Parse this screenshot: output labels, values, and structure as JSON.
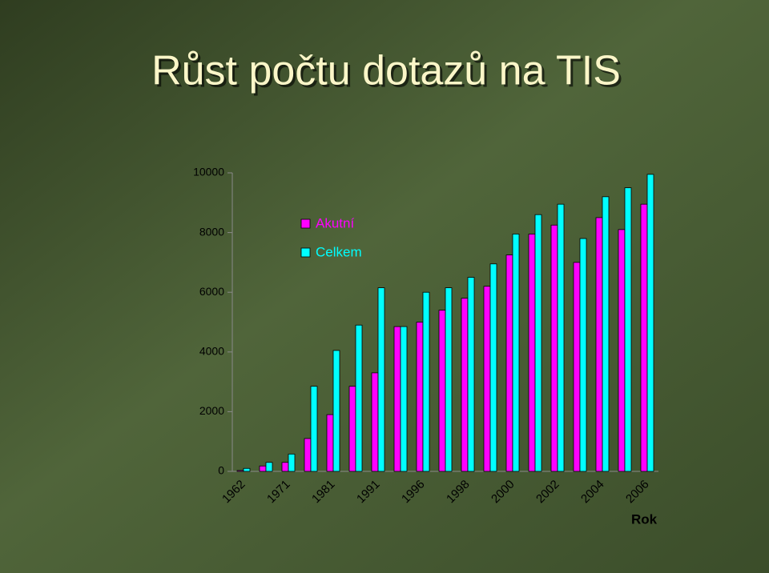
{
  "chart_data": {
    "type": "bar",
    "title": "Růst počtu dotazů na TIS",
    "x_label": "Rok",
    "categories": [
      "1962",
      null,
      "1971",
      null,
      "1981",
      null,
      "1991",
      null,
      "1996",
      null,
      "1998",
      null,
      "2000",
      null,
      "2002",
      null,
      "2004",
      null,
      "2006"
    ],
    "series": [
      {
        "name": "Akutní",
        "color": "#ff00ff",
        "values": [
          30,
          180,
          300,
          1100,
          1900,
          2850,
          3300,
          4850,
          5000,
          5400,
          5800,
          6200,
          7250,
          7950,
          8250,
          7000,
          8500,
          8100,
          8950
        ]
      },
      {
        "name": "Celkem",
        "color": "#00ffff",
        "values": [
          100,
          300,
          580,
          2850,
          4050,
          4900,
          6150,
          4850,
          6000,
          6150,
          6500,
          6950,
          7950,
          8600,
          8950,
          7800,
          9200,
          9500,
          9950
        ]
      }
    ],
    "ylim": [
      0,
      10000
    ],
    "yticks": [
      0,
      2000,
      4000,
      6000,
      8000,
      10000
    ],
    "legend": "top-left"
  }
}
